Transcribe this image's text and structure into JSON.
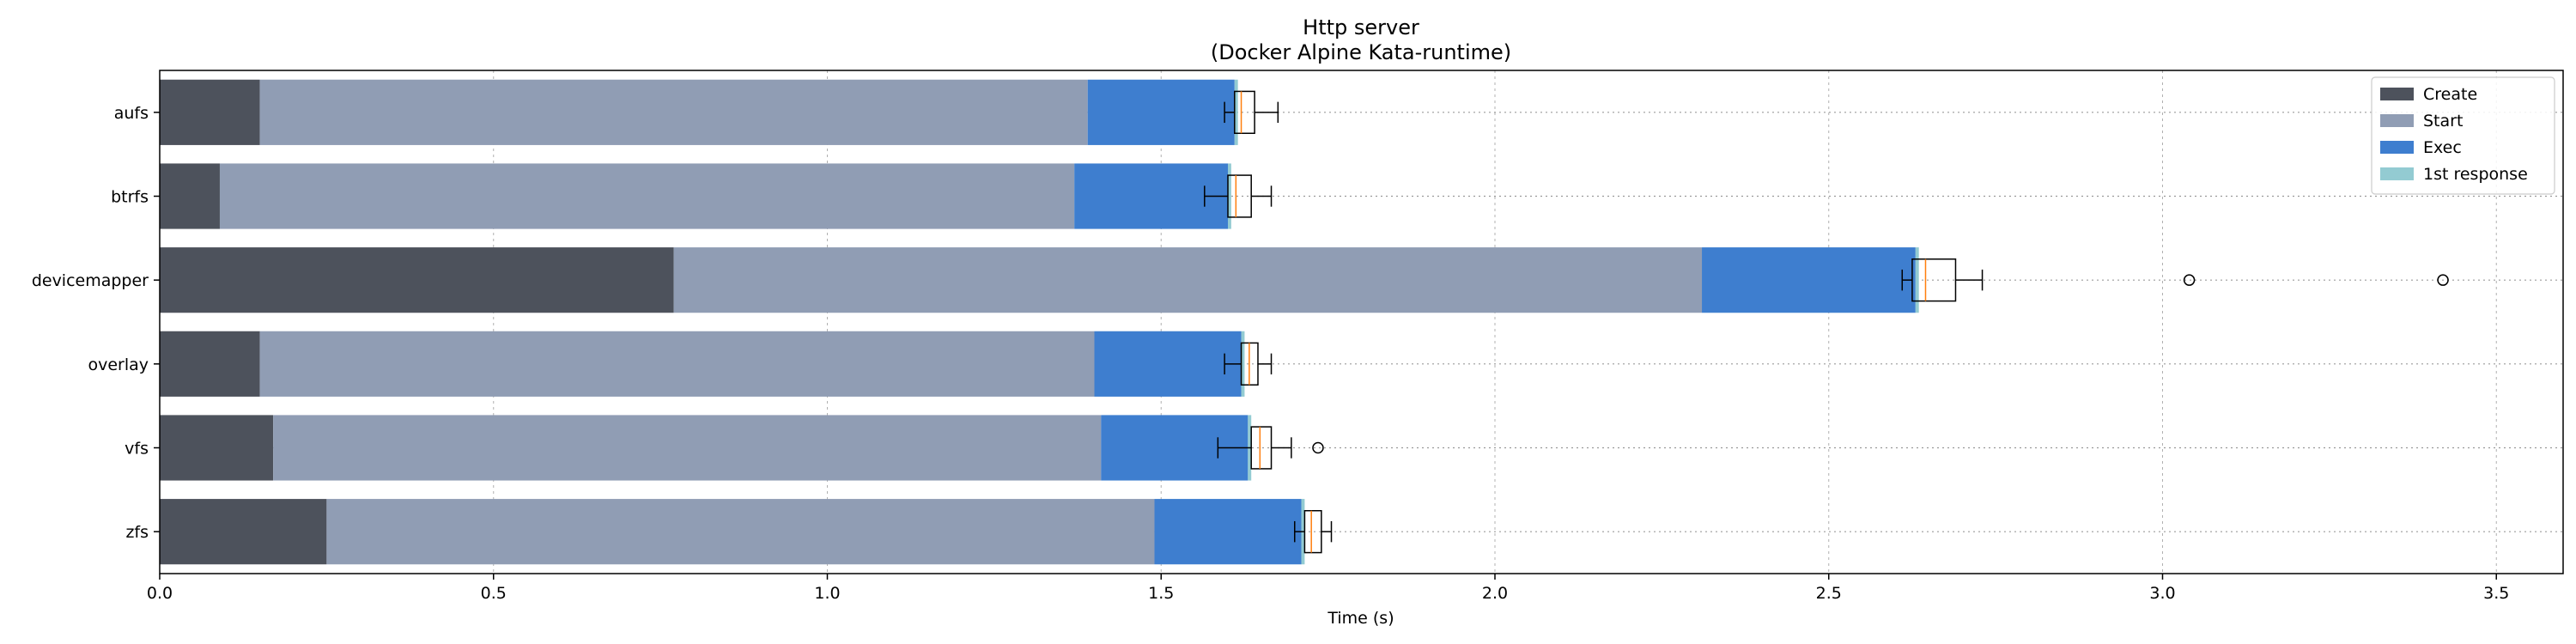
{
  "chart_data": {
    "type": "bar",
    "orientation": "horizontal",
    "stacked": true,
    "title": "Http server",
    "subtitle": "(Docker Alpine Kata-runtime)",
    "xlabel": "Time (s)",
    "ylabel": "",
    "xlim": [
      0,
      3.6
    ],
    "xticks": [
      0.0,
      0.5,
      1.0,
      1.5,
      2.0,
      2.5,
      3.0,
      3.5
    ],
    "xtick_labels": [
      "0.0",
      "0.5",
      "1.0",
      "1.5",
      "2.0",
      "2.5",
      "3.0",
      "3.5"
    ],
    "grid": true,
    "legend": "top-right",
    "categories": [
      "aufs",
      "btrfs",
      "devicemapper",
      "overlay",
      "vfs",
      "zfs"
    ],
    "series": [
      {
        "name": "Create",
        "color": "#4d525c",
        "values": [
          0.15,
          0.09,
          0.77,
          0.15,
          0.17,
          0.25
        ]
      },
      {
        "name": "Start",
        "color": "#909db4",
        "values": [
          1.24,
          1.28,
          1.54,
          1.25,
          1.24,
          1.24
        ]
      },
      {
        "name": "Exec",
        "color": "#3e7ecf",
        "values": [
          0.22,
          0.23,
          0.32,
          0.22,
          0.22,
          0.22
        ]
      },
      {
        "name": "1st response",
        "color": "#93cbd2",
        "values": [
          0.005,
          0.005,
          0.005,
          0.005,
          0.005,
          0.005
        ]
      }
    ],
    "boxplots": [
      {
        "category": "aufs",
        "whisker_low": 1.595,
        "q1": 1.61,
        "median": 1.62,
        "q3": 1.64,
        "whisker_high": 1.675,
        "outliers": []
      },
      {
        "category": "btrfs",
        "whisker_low": 1.565,
        "q1": 1.6,
        "median": 1.612,
        "q3": 1.635,
        "whisker_high": 1.665,
        "outliers": []
      },
      {
        "category": "devicemapper",
        "whisker_low": 2.61,
        "q1": 2.625,
        "median": 2.645,
        "q3": 2.69,
        "whisker_high": 2.73,
        "outliers": [
          3.04,
          3.42
        ]
      },
      {
        "category": "overlay",
        "whisker_low": 1.595,
        "q1": 1.62,
        "median": 1.632,
        "q3": 1.645,
        "whisker_high": 1.665,
        "outliers": []
      },
      {
        "category": "vfs",
        "whisker_low": 1.585,
        "q1": 1.635,
        "median": 1.648,
        "q3": 1.665,
        "whisker_high": 1.695,
        "outliers": [
          1.735
        ]
      },
      {
        "category": "zfs",
        "whisker_low": 1.7,
        "q1": 1.715,
        "median": 1.725,
        "q3": 1.74,
        "whisker_high": 1.755,
        "outliers": []
      }
    ]
  }
}
